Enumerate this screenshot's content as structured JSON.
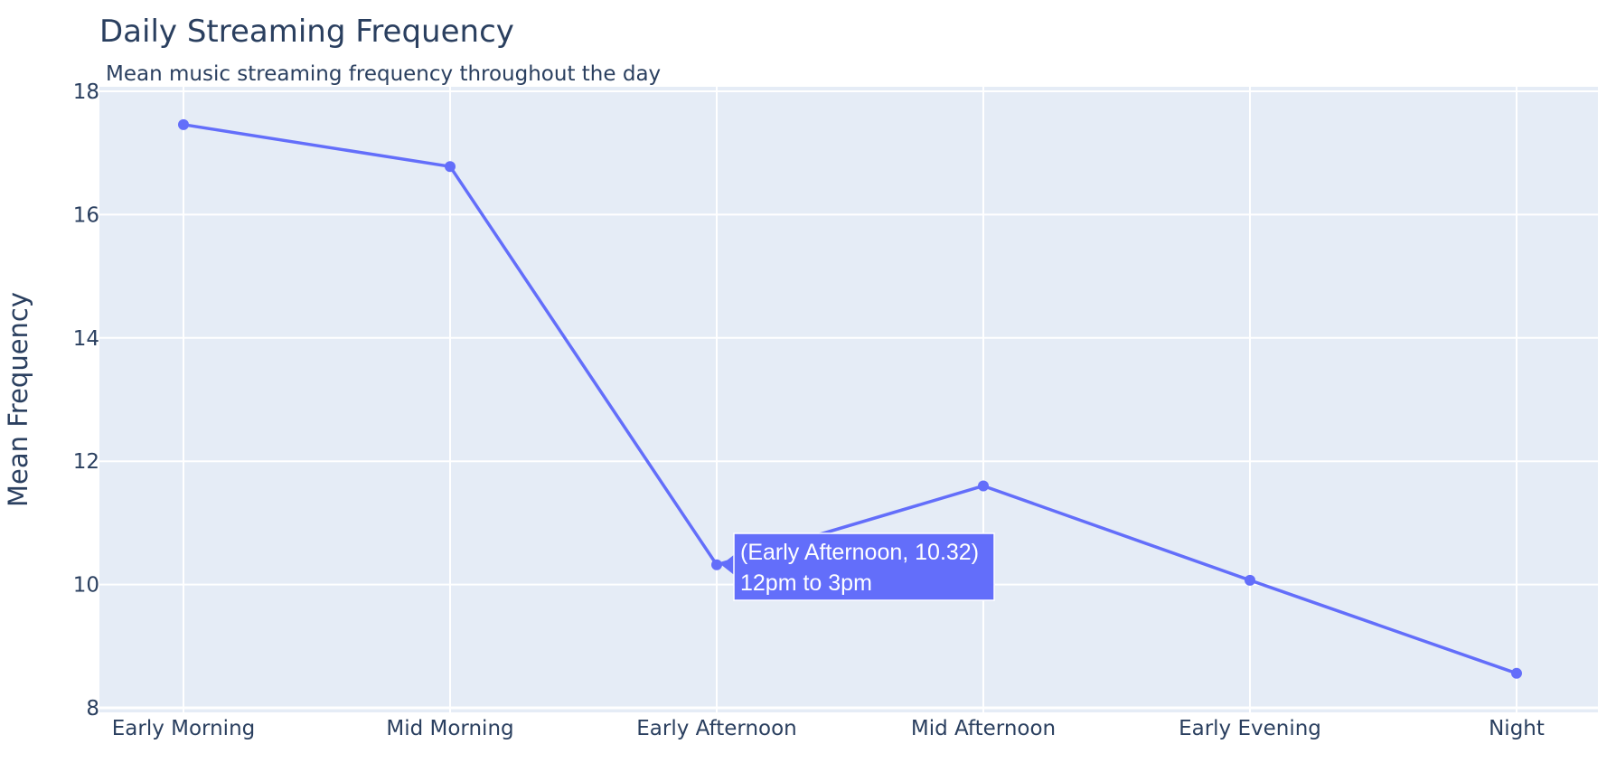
{
  "chart_data": {
    "type": "line",
    "title": "Daily Streaming Frequency",
    "subtitle": "Mean music streaming frequency throughout the day",
    "xlabel": "",
    "ylabel": "Mean Frequency",
    "categories": [
      "Early Morning",
      "Mid Morning",
      "Early Afternoon",
      "Mid Afternoon",
      "Early Evening",
      "Night"
    ],
    "series": [
      {
        "values": [
          17.46,
          16.78,
          10.32,
          11.6,
          10.07,
          8.56
        ],
        "color": "#636efa"
      }
    ],
    "ylim": [
      8,
      18
    ],
    "yticks": [
      8,
      10,
      12,
      14,
      16,
      18
    ],
    "grid": true,
    "plot_background": "#e5ecf6",
    "hover": {
      "category_index": 2,
      "line1": "(Early Afternoon, 10.32)",
      "line2": "12pm to 3pm"
    }
  }
}
